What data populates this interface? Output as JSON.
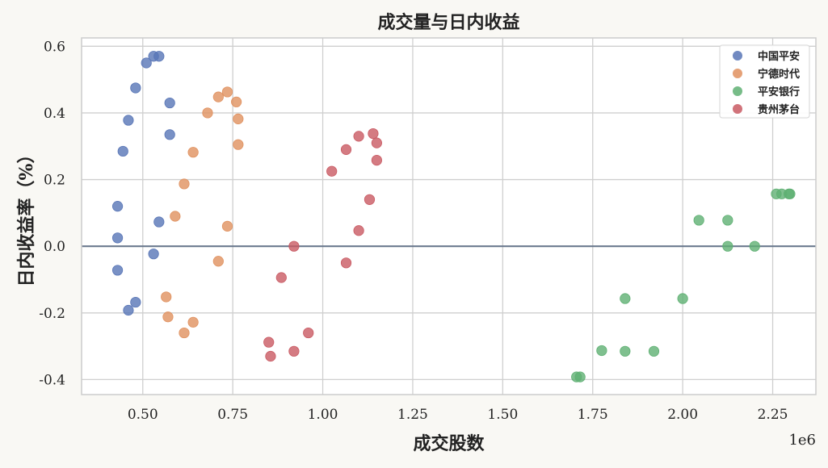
{
  "chart_data": {
    "type": "scatter",
    "title": "成交量与日内收益",
    "xlabel": "成交股数",
    "ylabel": "日内收益率（%）",
    "x_offset_label": "1e6",
    "xlim": [
      0.33,
      2.37
    ],
    "ylim": [
      -0.445,
      0.625
    ],
    "x_ticks": [
      0.5,
      0.75,
      1.0,
      1.25,
      1.5,
      1.75,
      2.0,
      2.25
    ],
    "x_tick_labels": [
      "0.50",
      "0.75",
      "1.00",
      "1.25",
      "1.50",
      "1.75",
      "2.00",
      "2.25"
    ],
    "y_ticks": [
      -0.4,
      -0.2,
      0.0,
      0.2,
      0.4,
      0.6
    ],
    "y_tick_labels": [
      "-0.4",
      "-0.2",
      "0.0",
      "0.2",
      "0.4",
      "0.6"
    ],
    "grid": true,
    "reference_line_y": 0.0,
    "legend_position": "top-right",
    "series": [
      {
        "name": "中国平安",
        "color": "#5875b6",
        "points": [
          [
            0.53,
            0.57
          ],
          [
            0.545,
            0.57
          ],
          [
            0.51,
            0.55
          ],
          [
            0.48,
            0.475
          ],
          [
            0.575,
            0.43
          ],
          [
            0.46,
            0.378
          ],
          [
            0.575,
            0.335
          ],
          [
            0.445,
            0.285
          ],
          [
            0.43,
            0.12
          ],
          [
            0.545,
            0.073
          ],
          [
            0.43,
            0.025
          ],
          [
            0.53,
            -0.023
          ],
          [
            0.43,
            -0.072
          ],
          [
            0.48,
            -0.168
          ],
          [
            0.46,
            -0.192
          ]
        ]
      },
      {
        "name": "宁德时代",
        "color": "#e0915f",
        "points": [
          [
            0.735,
            0.463
          ],
          [
            0.71,
            0.448
          ],
          [
            0.76,
            0.433
          ],
          [
            0.68,
            0.4
          ],
          [
            0.765,
            0.382
          ],
          [
            0.765,
            0.305
          ],
          [
            0.64,
            0.282
          ],
          [
            0.615,
            0.187
          ],
          [
            0.59,
            0.09
          ],
          [
            0.735,
            0.06
          ],
          [
            0.71,
            -0.045
          ],
          [
            0.565,
            -0.152
          ],
          [
            0.57,
            -0.212
          ],
          [
            0.64,
            -0.228
          ],
          [
            0.615,
            -0.26
          ]
        ]
      },
      {
        "name": "平安银行",
        "color": "#5fb073",
        "points": [
          [
            2.26,
            0.157
          ],
          [
            2.275,
            0.157
          ],
          [
            2.295,
            0.157
          ],
          [
            2.298,
            0.157
          ],
          [
            2.045,
            0.078
          ],
          [
            2.125,
            0.078
          ],
          [
            2.125,
            0.0
          ],
          [
            2.2,
            0.0
          ],
          [
            1.84,
            -0.157
          ],
          [
            2.0,
            -0.157
          ],
          [
            1.775,
            -0.313
          ],
          [
            1.84,
            -0.315
          ],
          [
            1.92,
            -0.315
          ],
          [
            1.705,
            -0.392
          ],
          [
            1.715,
            -0.392
          ]
        ]
      },
      {
        "name": "贵州茅台",
        "color": "#c95a63",
        "points": [
          [
            1.14,
            0.338
          ],
          [
            1.1,
            0.33
          ],
          [
            1.15,
            0.31
          ],
          [
            1.065,
            0.29
          ],
          [
            1.15,
            0.258
          ],
          [
            1.025,
            0.225
          ],
          [
            1.13,
            0.14
          ],
          [
            1.1,
            0.047
          ],
          [
            0.92,
            0.0
          ],
          [
            1.065,
            -0.05
          ],
          [
            0.885,
            -0.094
          ],
          [
            0.96,
            -0.26
          ],
          [
            0.85,
            -0.288
          ],
          [
            0.92,
            -0.315
          ],
          [
            0.855,
            -0.33
          ]
        ]
      }
    ]
  }
}
